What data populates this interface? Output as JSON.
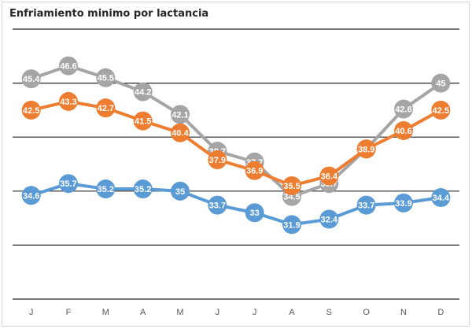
{
  "chart_data": {
    "type": "line",
    "title": "Enfriamiento minimo por lactancia",
    "xlabel": "",
    "ylabel": "",
    "categories": [
      "J",
      "F",
      "M",
      "A",
      "M",
      "J",
      "J",
      "A",
      "S",
      "O",
      "N",
      "D"
    ],
    "ylim": [
      25,
      50
    ],
    "grid": true,
    "legend": "none",
    "series": [
      {
        "color": "#a5a5a5",
        "values": [
          45.4,
          46.6,
          45.5,
          44.2,
          42.1,
          38.7,
          37.7,
          34.5,
          35.7,
          38.9,
          42.6,
          45
        ]
      },
      {
        "color": "#ed7d31",
        "values": [
          42.5,
          43.3,
          42.7,
          41.5,
          40.4,
          37.9,
          36.9,
          35.5,
          36.4,
          38.9,
          40.6,
          42.5
        ]
      },
      {
        "color": "#5b9bd5",
        "values": [
          34.6,
          35.7,
          35.2,
          35.2,
          35,
          33.7,
          33,
          31.9,
          32.4,
          33.7,
          33.9,
          34.4
        ]
      }
    ]
  }
}
